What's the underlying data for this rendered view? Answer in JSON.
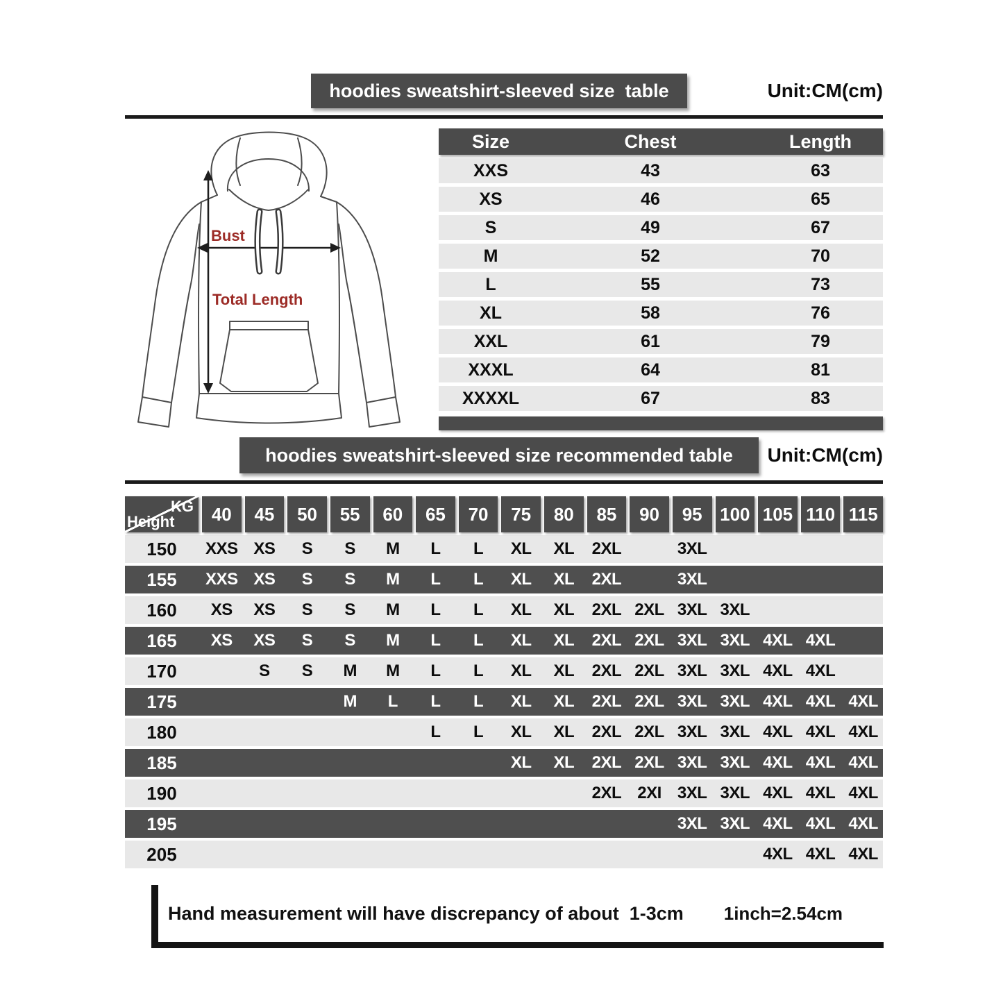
{
  "colors": {
    "dark_bar": "#4b4b4b",
    "dark_row": "#4f4f4f",
    "light_row": "#e8e8e8",
    "divider_line": "#1a1a1a",
    "red_label": "#9c2b26"
  },
  "header1": {
    "title": "hoodies sweatshirt-sleeved size  table",
    "unit": "Unit:CM(cm)"
  },
  "diagram": {
    "bust_label": "Bust",
    "total_length_label": "Total Length"
  },
  "size_table": {
    "columns": [
      "Size",
      "Chest",
      "Length"
    ],
    "rows": [
      [
        "XXS",
        "43",
        "63"
      ],
      [
        "XS",
        "46",
        "65"
      ],
      [
        "S",
        "49",
        "67"
      ],
      [
        "M",
        "52",
        "70"
      ],
      [
        "L",
        "55",
        "73"
      ],
      [
        "XL",
        "58",
        "76"
      ],
      [
        "XXL",
        "61",
        "79"
      ],
      [
        "XXXL",
        "64",
        "81"
      ],
      [
        "XXXXL",
        "67",
        "83"
      ]
    ]
  },
  "header2": {
    "title": "hoodies sweatshirt-sleeved size recommended table",
    "unit": "Unit:CM(cm)"
  },
  "recommended_table": {
    "corner": {
      "top_label": "KG",
      "bottom_label": "Height"
    },
    "kg_columns": [
      "40",
      "45",
      "50",
      "55",
      "60",
      "65",
      "70",
      "75",
      "80",
      "85",
      "90",
      "95",
      "100",
      "105",
      "110",
      "115"
    ],
    "rows": [
      {
        "height": "150",
        "sizes": [
          "XXS",
          "XS",
          "S",
          "S",
          "M",
          "L",
          "L",
          "XL",
          "XL",
          "2XL",
          "",
          "3XL",
          "",
          "",
          "",
          ""
        ]
      },
      {
        "height": "155",
        "sizes": [
          "XXS",
          "XS",
          "S",
          "S",
          "M",
          "L",
          "L",
          "XL",
          "XL",
          "2XL",
          "",
          "3XL",
          "",
          "",
          "",
          ""
        ]
      },
      {
        "height": "160",
        "sizes": [
          "XS",
          "XS",
          "S",
          "S",
          "M",
          "L",
          "L",
          "XL",
          "XL",
          "2XL",
          "2XL",
          "3XL",
          "3XL",
          "",
          "",
          ""
        ]
      },
      {
        "height": "165",
        "sizes": [
          "XS",
          "XS",
          "S",
          "S",
          "M",
          "L",
          "L",
          "XL",
          "XL",
          "2XL",
          "2XL",
          "3XL",
          "3XL",
          "4XL",
          "4XL",
          ""
        ]
      },
      {
        "height": "170",
        "sizes": [
          "",
          "S",
          "S",
          "M",
          "M",
          "L",
          "L",
          "XL",
          "XL",
          "2XL",
          "2XL",
          "3XL",
          "3XL",
          "4XL",
          "4XL",
          ""
        ]
      },
      {
        "height": "175",
        "sizes": [
          "",
          "",
          "",
          "M",
          "L",
          "L",
          "L",
          "XL",
          "XL",
          "2XL",
          "2XL",
          "3XL",
          "3XL",
          "4XL",
          "4XL",
          "4XL"
        ]
      },
      {
        "height": "180",
        "sizes": [
          "",
          "",
          "",
          "",
          "",
          "L",
          "L",
          "XL",
          "XL",
          "2XL",
          "2XL",
          "3XL",
          "3XL",
          "4XL",
          "4XL",
          "4XL"
        ]
      },
      {
        "height": "185",
        "sizes": [
          "",
          "",
          "",
          "",
          "",
          "",
          "",
          "XL",
          "XL",
          "2XL",
          "2XL",
          "3XL",
          "3XL",
          "4XL",
          "4XL",
          "4XL"
        ]
      },
      {
        "height": "190",
        "sizes": [
          "",
          "",
          "",
          "",
          "",
          "",
          "",
          "",
          "",
          "2XL",
          "2XI",
          "3XL",
          "3XL",
          "4XL",
          "4XL",
          "4XL"
        ]
      },
      {
        "height": "195",
        "sizes": [
          "",
          "",
          "",
          "",
          "",
          "",
          "",
          "",
          "",
          "",
          "",
          "3XL",
          "3XL",
          "4XL",
          "4XL",
          "4XL"
        ]
      },
      {
        "height": "205",
        "sizes": [
          "",
          "",
          "",
          "",
          "",
          "",
          "",
          "",
          "",
          "",
          "",
          "",
          "",
          "4XL",
          "4XL",
          "4XL"
        ]
      }
    ]
  },
  "footer": {
    "note": "Hand measurement will have discrepancy of about  1-3cm",
    "conversion": "1inch=2.54cm"
  }
}
